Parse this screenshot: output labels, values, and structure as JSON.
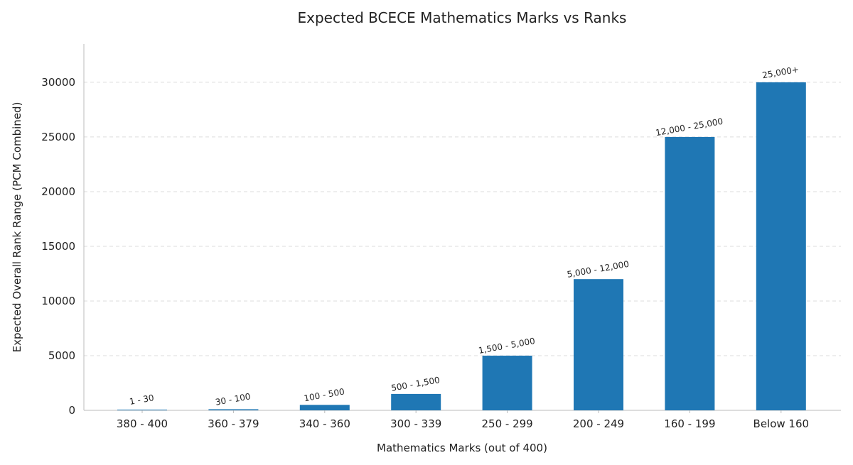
{
  "chart_data": {
    "type": "bar",
    "title": "Expected BCECE Mathematics Marks vs Ranks",
    "xlabel": "Mathematics Marks (out of 400)",
    "ylabel": "Expected Overall Rank Range (PCM Combined)",
    "categories": [
      "380 - 400",
      "360 - 379",
      "340 - 360",
      "300 - 339",
      "250 - 299",
      "200 - 249",
      "160 - 199",
      "Below 160"
    ],
    "values": [
      30,
      100,
      500,
      1500,
      5000,
      12000,
      25000,
      30000
    ],
    "data_labels": [
      "1 - 30",
      "30 - 100",
      "100 - 500",
      "500 - 1,500",
      "1,500 - 5,000",
      "5,000 - 12,000",
      "12,000 - 25,000",
      "25,000+"
    ],
    "ylim": [
      0,
      33500
    ],
    "yticks": [
      0,
      5000,
      10000,
      15000,
      20000,
      25000,
      30000
    ],
    "grid": true,
    "legend": "none",
    "bar_color": "#1f77b4"
  }
}
